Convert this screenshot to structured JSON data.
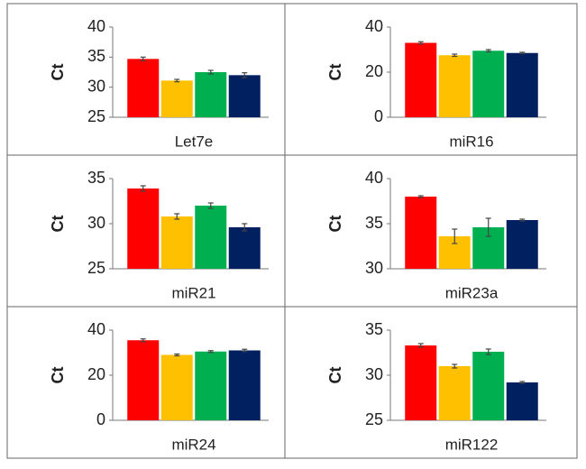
{
  "chart_data": [
    {
      "type": "bar",
      "xlabel": "Let7e",
      "ylabel": "Ct",
      "categories": [
        null,
        null,
        null,
        null
      ],
      "values": [
        34.7,
        31.1,
        32.5,
        32.0
      ],
      "errors": [
        0.3,
        0.2,
        0.3,
        0.4
      ],
      "colors": [
        "#ff0000",
        "#ffc000",
        "#00b050",
        "#002060"
      ],
      "ylim": [
        25,
        40
      ],
      "yticks": [
        25,
        30,
        35,
        40
      ]
    },
    {
      "type": "bar",
      "xlabel": "miR16",
      "ylabel": "Ct",
      "categories": [
        null,
        null,
        null,
        null
      ],
      "values": [
        33,
        27.5,
        29.5,
        28.5
      ],
      "errors": [
        0.5,
        0.5,
        0.5,
        0.3
      ],
      "colors": [
        "#ff0000",
        "#ffc000",
        "#00b050",
        "#002060"
      ],
      "ylim": [
        0,
        40
      ],
      "yticks": [
        0,
        20,
        40
      ]
    },
    {
      "type": "bar",
      "xlabel": "miR21",
      "ylabel": "Ct",
      "categories": [
        null,
        null,
        null,
        null
      ],
      "values": [
        33.9,
        30.8,
        32.0,
        29.6
      ],
      "errors": [
        0.3,
        0.3,
        0.3,
        0.4
      ],
      "colors": [
        "#ff0000",
        "#ffc000",
        "#00b050",
        "#002060"
      ],
      "ylim": [
        25,
        35
      ],
      "yticks": [
        25,
        30,
        35
      ]
    },
    {
      "type": "bar",
      "xlabel": "miR23a",
      "ylabel": "Ct",
      "categories": [
        null,
        null,
        null,
        null
      ],
      "values": [
        38.0,
        33.6,
        34.6,
        35.4
      ],
      "errors": [
        0.1,
        0.8,
        1.0,
        0.1
      ],
      "colors": [
        "#ff0000",
        "#ffc000",
        "#00b050",
        "#002060"
      ],
      "ylim": [
        30,
        40
      ],
      "yticks": [
        30,
        35,
        40
      ]
    },
    {
      "type": "bar",
      "xlabel": "miR24",
      "ylabel": "Ct",
      "categories": [
        null,
        null,
        null,
        null
      ],
      "values": [
        35.5,
        29,
        30.5,
        31
      ],
      "errors": [
        0.6,
        0.4,
        0.4,
        0.5
      ],
      "colors": [
        "#ff0000",
        "#ffc000",
        "#00b050",
        "#002060"
      ],
      "ylim": [
        0,
        40
      ],
      "yticks": [
        0,
        20,
        40
      ]
    },
    {
      "type": "bar",
      "xlabel": "miR122",
      "ylabel": "Ct",
      "categories": [
        null,
        null,
        null,
        null
      ],
      "values": [
        33.3,
        31.0,
        32.6,
        29.2
      ],
      "errors": [
        0.2,
        0.2,
        0.3,
        0.1
      ],
      "colors": [
        "#ff0000",
        "#ffc000",
        "#00b050",
        "#002060"
      ],
      "ylim": [
        25,
        35
      ],
      "yticks": [
        25,
        30,
        35
      ]
    }
  ]
}
